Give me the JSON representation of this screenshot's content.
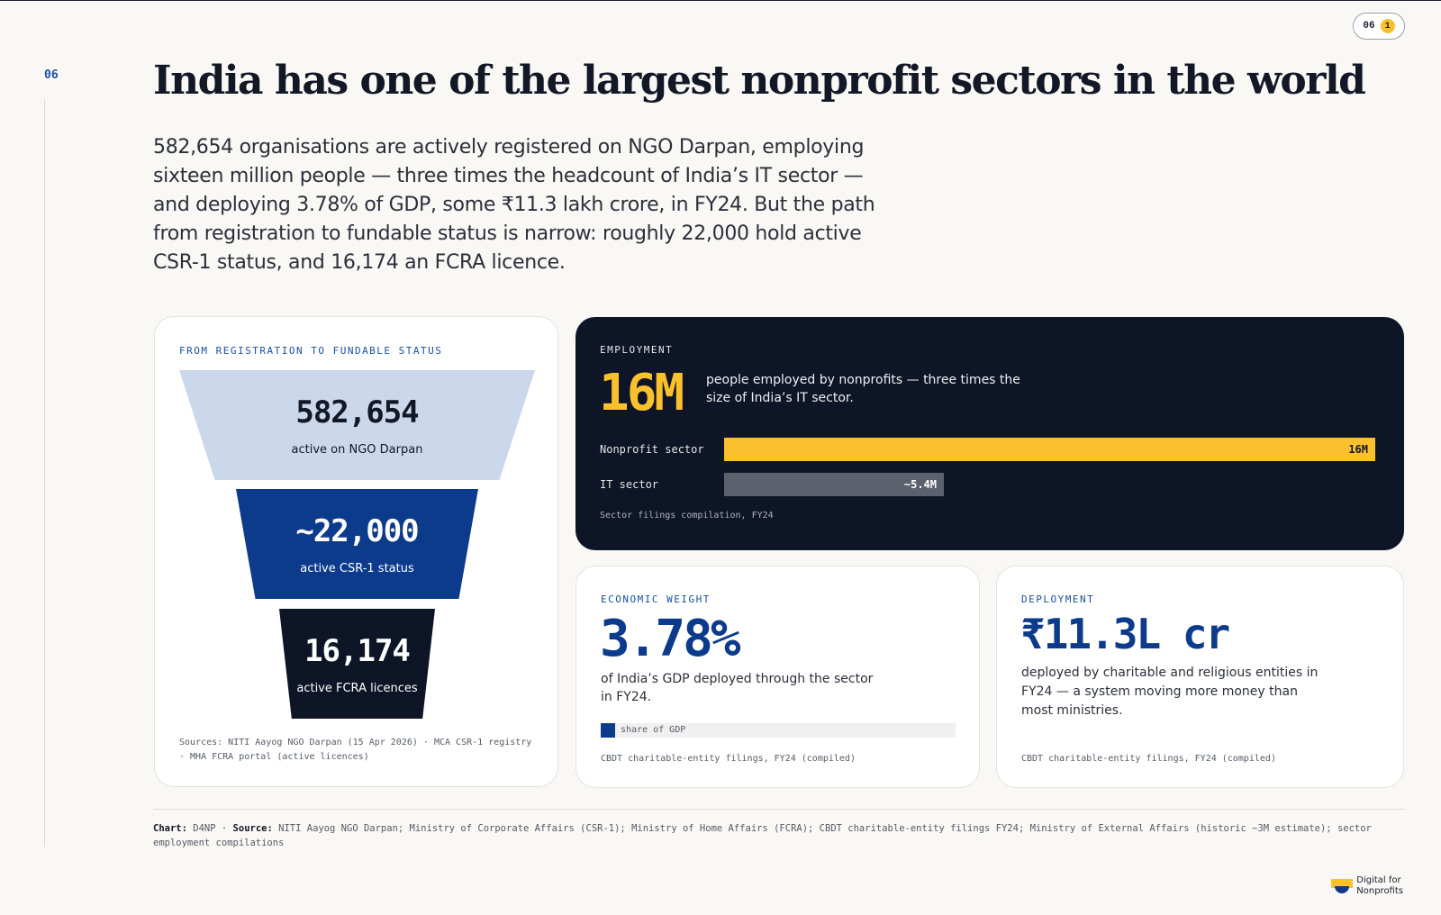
{
  "page": {
    "indicator_number": "06",
    "indicator_badge": "1",
    "section_number": "06"
  },
  "header": {
    "title": "India has one of the largest nonprofit sectors in the world",
    "lede": "582,654 organisations are actively registered on NGO Darpan, employing sixteen million people — three times the headcount of India’s IT sector — and deploying 3.78% of GDP, some ₹11.3 lakh crore, in FY24. But the path from registration to fundable status is narrow: roughly 22,000 hold active CSR-1 status, and 16,174 an FCRA licence."
  },
  "funnel": {
    "eyebrow": "FROM REGISTRATION TO FUNDABLE STATUS",
    "tiers": [
      {
        "value": "582,654",
        "label": "active on NGO Darpan"
      },
      {
        "value": "~22,000",
        "label": "active CSR-1 status"
      },
      {
        "value": "16,174",
        "label": "active FCRA licences"
      }
    ],
    "sources": "Sources: NITI Aayog NGO Darpan (15 Apr 2026) · MCA CSR-1 registry · MHA FCRA portal (active licences)"
  },
  "employment": {
    "eyebrow": "EMPLOYMENT",
    "big_value": "16M",
    "description": "people employed by nonprofits — three times the size of India’s IT sector.",
    "source": "Sector filings compilation, FY24"
  },
  "chart_data": {
    "type": "bar",
    "orientation": "horizontal",
    "categories": [
      "Nonprofit sector",
      "IT sector"
    ],
    "values": [
      16,
      5.4
    ],
    "value_labels": [
      "16M",
      "~5.4M"
    ],
    "colors": [
      "#fbc02d",
      "#5c626d"
    ],
    "xlim": [
      0,
      16
    ]
  },
  "economic": {
    "eyebrow": "ECONOMIC WEIGHT",
    "big_value": "3.78%",
    "description": "of India’s GDP deployed through the sector in FY24.",
    "bar_label": "share of GDP",
    "share_fraction": 0.0378,
    "source": "CBDT charitable-entity filings, FY24 (compiled)"
  },
  "deployment": {
    "eyebrow": "DEPLOYMENT",
    "big_value": "₹11.3L cr",
    "description": "deployed by charitable and religious entities in FY24 — a system moving more money than most ministries.",
    "source": "CBDT charitable-entity filings, FY24 (compiled)"
  },
  "footer": {
    "chart_key": "Chart:",
    "chart_value": "D4NP",
    "sep": "·",
    "source_key": "Source:",
    "source_value": "NITI Aayog NGO Darpan; Ministry of Corporate Affairs (CSR-1); Ministry of Home Affairs (FCRA); CBDT charitable-entity filings FY24; Ministry of External Affairs (historic ~3M estimate); sector employment compilations"
  },
  "brand": {
    "line1": "Digital for",
    "line2": "Nonprofits",
    "mark_colors": [
      "#fbc02d",
      "#0d3b8c"
    ]
  }
}
